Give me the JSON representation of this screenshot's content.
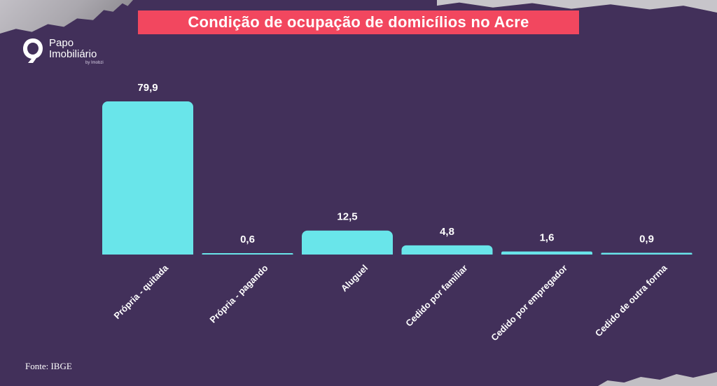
{
  "header": {
    "title": "Condição de ocupação de domicílios no Acre"
  },
  "logo": {
    "line1": "Papo",
    "line2": "Imobiliário",
    "sub": "by Imobzi"
  },
  "footer": {
    "source": "Fonte: IBGE"
  },
  "colors": {
    "background": "#42305a",
    "bar": "#69e5ea",
    "title_box": "#f2475f",
    "text": "#ffffff"
  },
  "chart_data": {
    "type": "bar",
    "title": "Condição de ocupação de domicílios no Acre",
    "xlabel": "",
    "ylabel": "",
    "categories": [
      "Própria - quitada",
      "Própria - pagando",
      "Aluguel",
      "Cedido por familiar",
      "Cedido por empregador",
      "Cedido de outra forma"
    ],
    "values": [
      79.9,
      0.6,
      12.5,
      4.8,
      1.6,
      0.9
    ],
    "value_labels": [
      "79,9",
      "0,6",
      "12,5",
      "4,8",
      "1,6",
      "0,9"
    ],
    "ylim": [
      0,
      79.9
    ],
    "grid": false,
    "legend": "none"
  }
}
